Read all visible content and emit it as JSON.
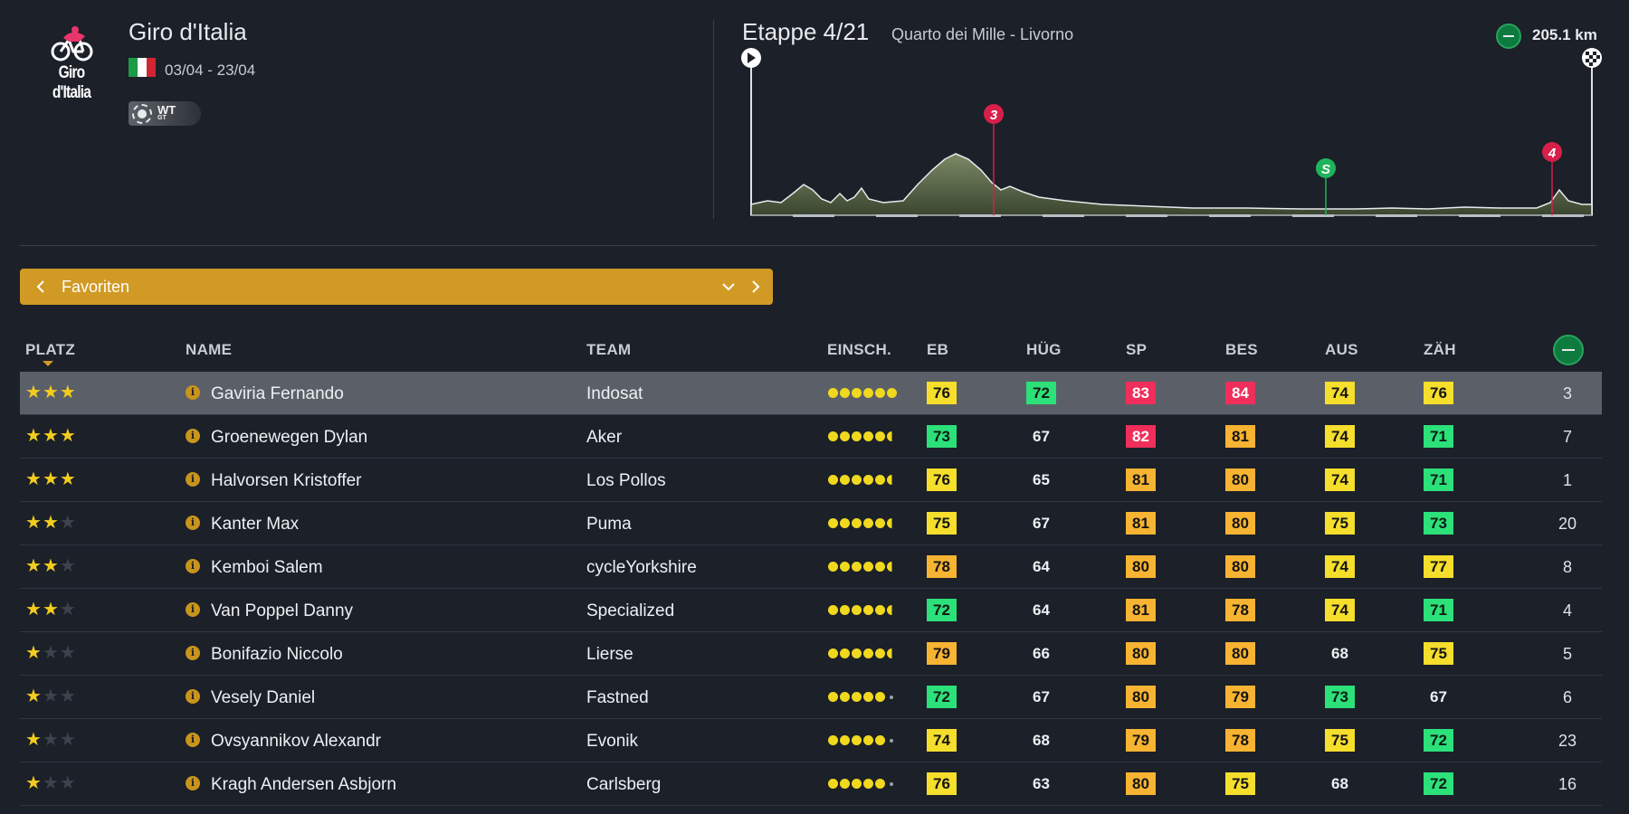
{
  "race": {
    "logo_text": "Giro d'Italia",
    "title": "Giro d'Italia",
    "dates": "03/04 - 23/04",
    "flag_colors": [
      "#1d9a45",
      "#ffffff",
      "#d12533"
    ],
    "badge": {
      "main": "WT",
      "sub": "GT"
    }
  },
  "stage": {
    "title": "Etappe 4/21",
    "name": "Quarto dei Mille - Livorno",
    "distance": "205.1 km",
    "markers": [
      {
        "label": "3",
        "type": "climb",
        "color": "#d81f4a"
      },
      {
        "label": "S",
        "type": "sprint",
        "color": "#1fb45c"
      },
      {
        "label": "4",
        "type": "climb",
        "color": "#d81f4a"
      }
    ]
  },
  "filter": {
    "label": "Favoriten",
    "prev_icon": "chevron-left-icon",
    "next_icon": "chevron-right-icon",
    "dropdown_icon": "chevron-down-icon"
  },
  "colors": {
    "accent": "#d19a24",
    "background": "#1b2029",
    "selected_row": "#5b6068",
    "green": "#2ce07a",
    "yellow": "#f5de2c",
    "orange": "#f7b332",
    "red": "#ef2e5b"
  },
  "table": {
    "headers": {
      "platz": "PLATZ",
      "name": "NAME",
      "team": "TEAM",
      "einsch": "EINSCH.",
      "eb": "EB",
      "hug": "HÜG",
      "sp": "SP",
      "bes": "BES",
      "aus": "AUS",
      "zah": "ZÄH"
    },
    "rows": [
      {
        "stars": 3,
        "name": "Gaviria Fernando",
        "team": "Indosat",
        "rating": 6,
        "eb": "76",
        "hug": "72",
        "sp": "83",
        "bes": "84",
        "aus": "74",
        "zah": "76",
        "rank": "3",
        "selected": true
      },
      {
        "stars": 3,
        "name": "Groenewegen Dylan",
        "team": "Aker",
        "rating": 5.5,
        "eb": "73",
        "hug": "67",
        "sp": "82",
        "bes": "81",
        "aus": "74",
        "zah": "71",
        "rank": "7",
        "selected": false
      },
      {
        "stars": 3,
        "name": "Halvorsen Kristoffer",
        "team": "Los Pollos",
        "rating": 5.5,
        "eb": "76",
        "hug": "65",
        "sp": "81",
        "bes": "80",
        "aus": "74",
        "zah": "71",
        "rank": "1",
        "selected": false
      },
      {
        "stars": 2,
        "name": "Kanter Max",
        "team": "Puma",
        "rating": 5.5,
        "eb": "75",
        "hug": "67",
        "sp": "81",
        "bes": "80",
        "aus": "75",
        "zah": "73",
        "rank": "20",
        "selected": false
      },
      {
        "stars": 2,
        "name": "Kemboi Salem",
        "team": "cycleYorkshire",
        "rating": 5.5,
        "eb": "78",
        "hug": "64",
        "sp": "80",
        "bes": "80",
        "aus": "74",
        "zah": "77",
        "rank": "8",
        "selected": false
      },
      {
        "stars": 2,
        "name": "Van Poppel Danny",
        "team": "Specialized",
        "rating": 5.5,
        "eb": "72",
        "hug": "64",
        "sp": "81",
        "bes": "78",
        "aus": "74",
        "zah": "71",
        "rank": "4",
        "selected": false
      },
      {
        "stars": 1,
        "name": "Bonifazio Niccolo",
        "team": "Lierse",
        "rating": 5.5,
        "eb": "79",
        "hug": "66",
        "sp": "80",
        "bes": "80",
        "aus": "68",
        "zah": "75",
        "rank": "5",
        "selected": false
      },
      {
        "stars": 1,
        "name": "Vesely Daniel",
        "team": "Fastned",
        "rating": 5,
        "eb": "72",
        "hug": "67",
        "sp": "80",
        "bes": "79",
        "aus": "73",
        "zah": "67",
        "rank": "6",
        "selected": false
      },
      {
        "stars": 1,
        "name": "Ovsyannikov Alexandr",
        "team": "Evonik",
        "rating": 5,
        "eb": "74",
        "hug": "68",
        "sp": "79",
        "bes": "78",
        "aus": "75",
        "zah": "72",
        "rank": "23",
        "selected": false
      },
      {
        "stars": 1,
        "name": "Kragh Andersen Asbjorn",
        "team": "Carlsberg",
        "rating": 5,
        "eb": "76",
        "hug": "63",
        "sp": "80",
        "bes": "75",
        "aus": "68",
        "zah": "72",
        "rank": "16",
        "selected": false
      }
    ]
  }
}
